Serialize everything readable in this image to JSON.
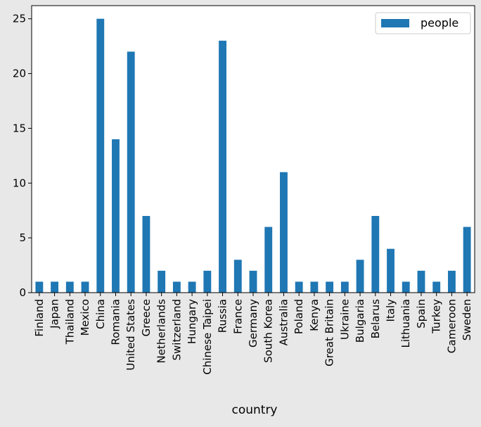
{
  "chart_data": {
    "type": "bar",
    "title": "",
    "xlabel": "country",
    "ylabel": "",
    "categories": [
      "Finland",
      "Japan",
      "Thailand",
      "Mexico",
      "China",
      "Romania",
      "United States",
      "Greece",
      "Netherlands",
      "Switzerland",
      "Hungary",
      "Chinese Taipei",
      "Russia",
      "France",
      "Germany",
      "South Korea",
      "Australia",
      "Poland",
      "Kenya",
      "Great Britain",
      "Ukraine",
      "Bulgaria",
      "Belarus",
      "Italy",
      "Lithuania",
      "Spain",
      "Turkey",
      "Cameroon",
      "Sweden"
    ],
    "series": [
      {
        "name": "people",
        "color": "#1f77b4",
        "values": [
          1,
          1,
          1,
          1,
          25,
          14,
          22,
          7,
          2,
          1,
          1,
          2,
          23,
          3,
          2,
          6,
          11,
          1,
          1,
          1,
          1,
          3,
          7,
          4,
          1,
          2,
          1,
          2,
          6
        ]
      }
    ],
    "yticks": [
      0,
      5,
      10,
      15,
      20,
      25
    ],
    "ylim": [
      0,
      26.2
    ],
    "grid": false,
    "legend_position": "top-right",
    "background_color": "#e8e8e8",
    "plot_background_color": "#ffffff"
  }
}
